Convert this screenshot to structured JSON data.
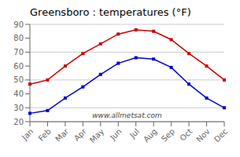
{
  "chart_data": {
    "type": "line",
    "title": "Greensboro : temperatures (°F)",
    "categories": [
      "Jan",
      "Feb",
      "Mar",
      "Apr",
      "May",
      "Jun",
      "Jul",
      "Aug",
      "Sep",
      "Oct",
      "Nov",
      "Dec"
    ],
    "series": [
      {
        "color": "#cc0000",
        "marker": "square",
        "values": [
          47,
          50,
          60,
          69,
          76,
          83,
          86,
          85,
          79,
          69,
          60,
          50
        ]
      },
      {
        "color": "#0000cc",
        "marker": "square",
        "values": [
          26,
          28,
          37,
          45,
          54,
          62,
          66,
          65,
          59,
          47,
          37,
          30
        ]
      }
    ],
    "ylim": [
      20,
      90
    ],
    "yticks": [
      20,
      30,
      40,
      50,
      60,
      70,
      80,
      90
    ],
    "grid": true,
    "annotations": [
      "www.allmetsat.com"
    ]
  }
}
